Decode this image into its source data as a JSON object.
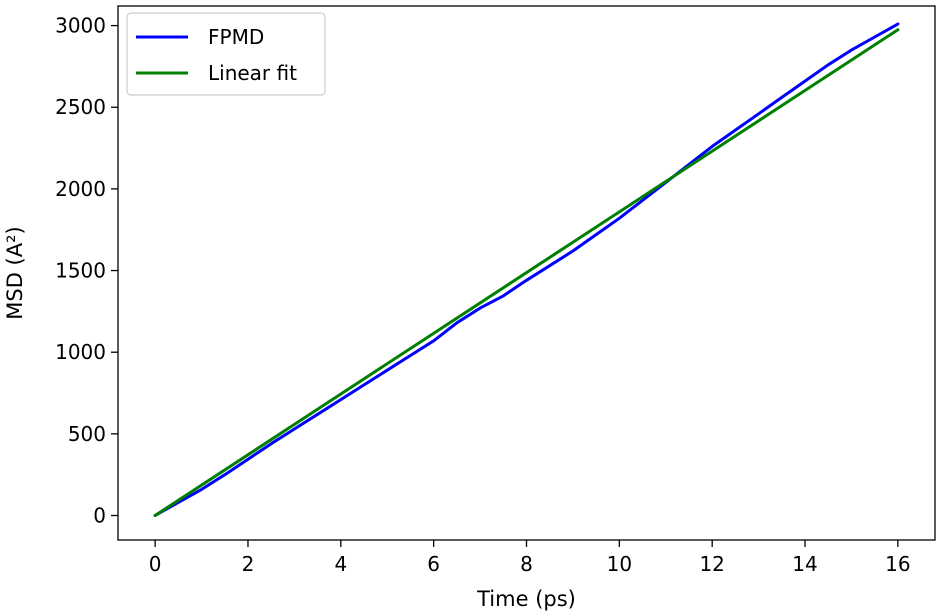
{
  "chart_data": {
    "type": "line",
    "title": "",
    "xlabel": "Time (ps)",
    "ylabel": "MSD (A²)",
    "xlim": [
      -0.8,
      16.8
    ],
    "ylim": [
      -150,
      3120
    ],
    "xticks": [
      0,
      2,
      4,
      6,
      8,
      10,
      12,
      14,
      16
    ],
    "yticks": [
      0,
      500,
      1000,
      1500,
      2000,
      2500,
      3000
    ],
    "grid": false,
    "legend": {
      "position": "top-left"
    },
    "series": [
      {
        "name": "FPMD",
        "color": "#0000ff",
        "x": [
          0,
          0.5,
          1,
          1.5,
          2,
          2.5,
          3,
          3.5,
          4,
          4.5,
          5,
          5.5,
          6,
          6.5,
          7,
          7.5,
          8,
          8.5,
          9,
          9.5,
          10,
          10.5,
          11,
          11.5,
          12,
          12.5,
          13,
          13.5,
          14,
          14.5,
          15,
          15.5,
          16
        ],
        "y": [
          0,
          80,
          160,
          250,
          345,
          440,
          530,
          620,
          710,
          800,
          890,
          980,
          1070,
          1180,
          1270,
          1345,
          1440,
          1530,
          1620,
          1720,
          1820,
          1930,
          2040,
          2150,
          2260,
          2360,
          2460,
          2560,
          2660,
          2760,
          2850,
          2930,
          3010
        ]
      },
      {
        "name": "Linear fit",
        "color": "#008000",
        "x": [
          0,
          16
        ],
        "y": [
          0,
          2975
        ]
      }
    ]
  }
}
